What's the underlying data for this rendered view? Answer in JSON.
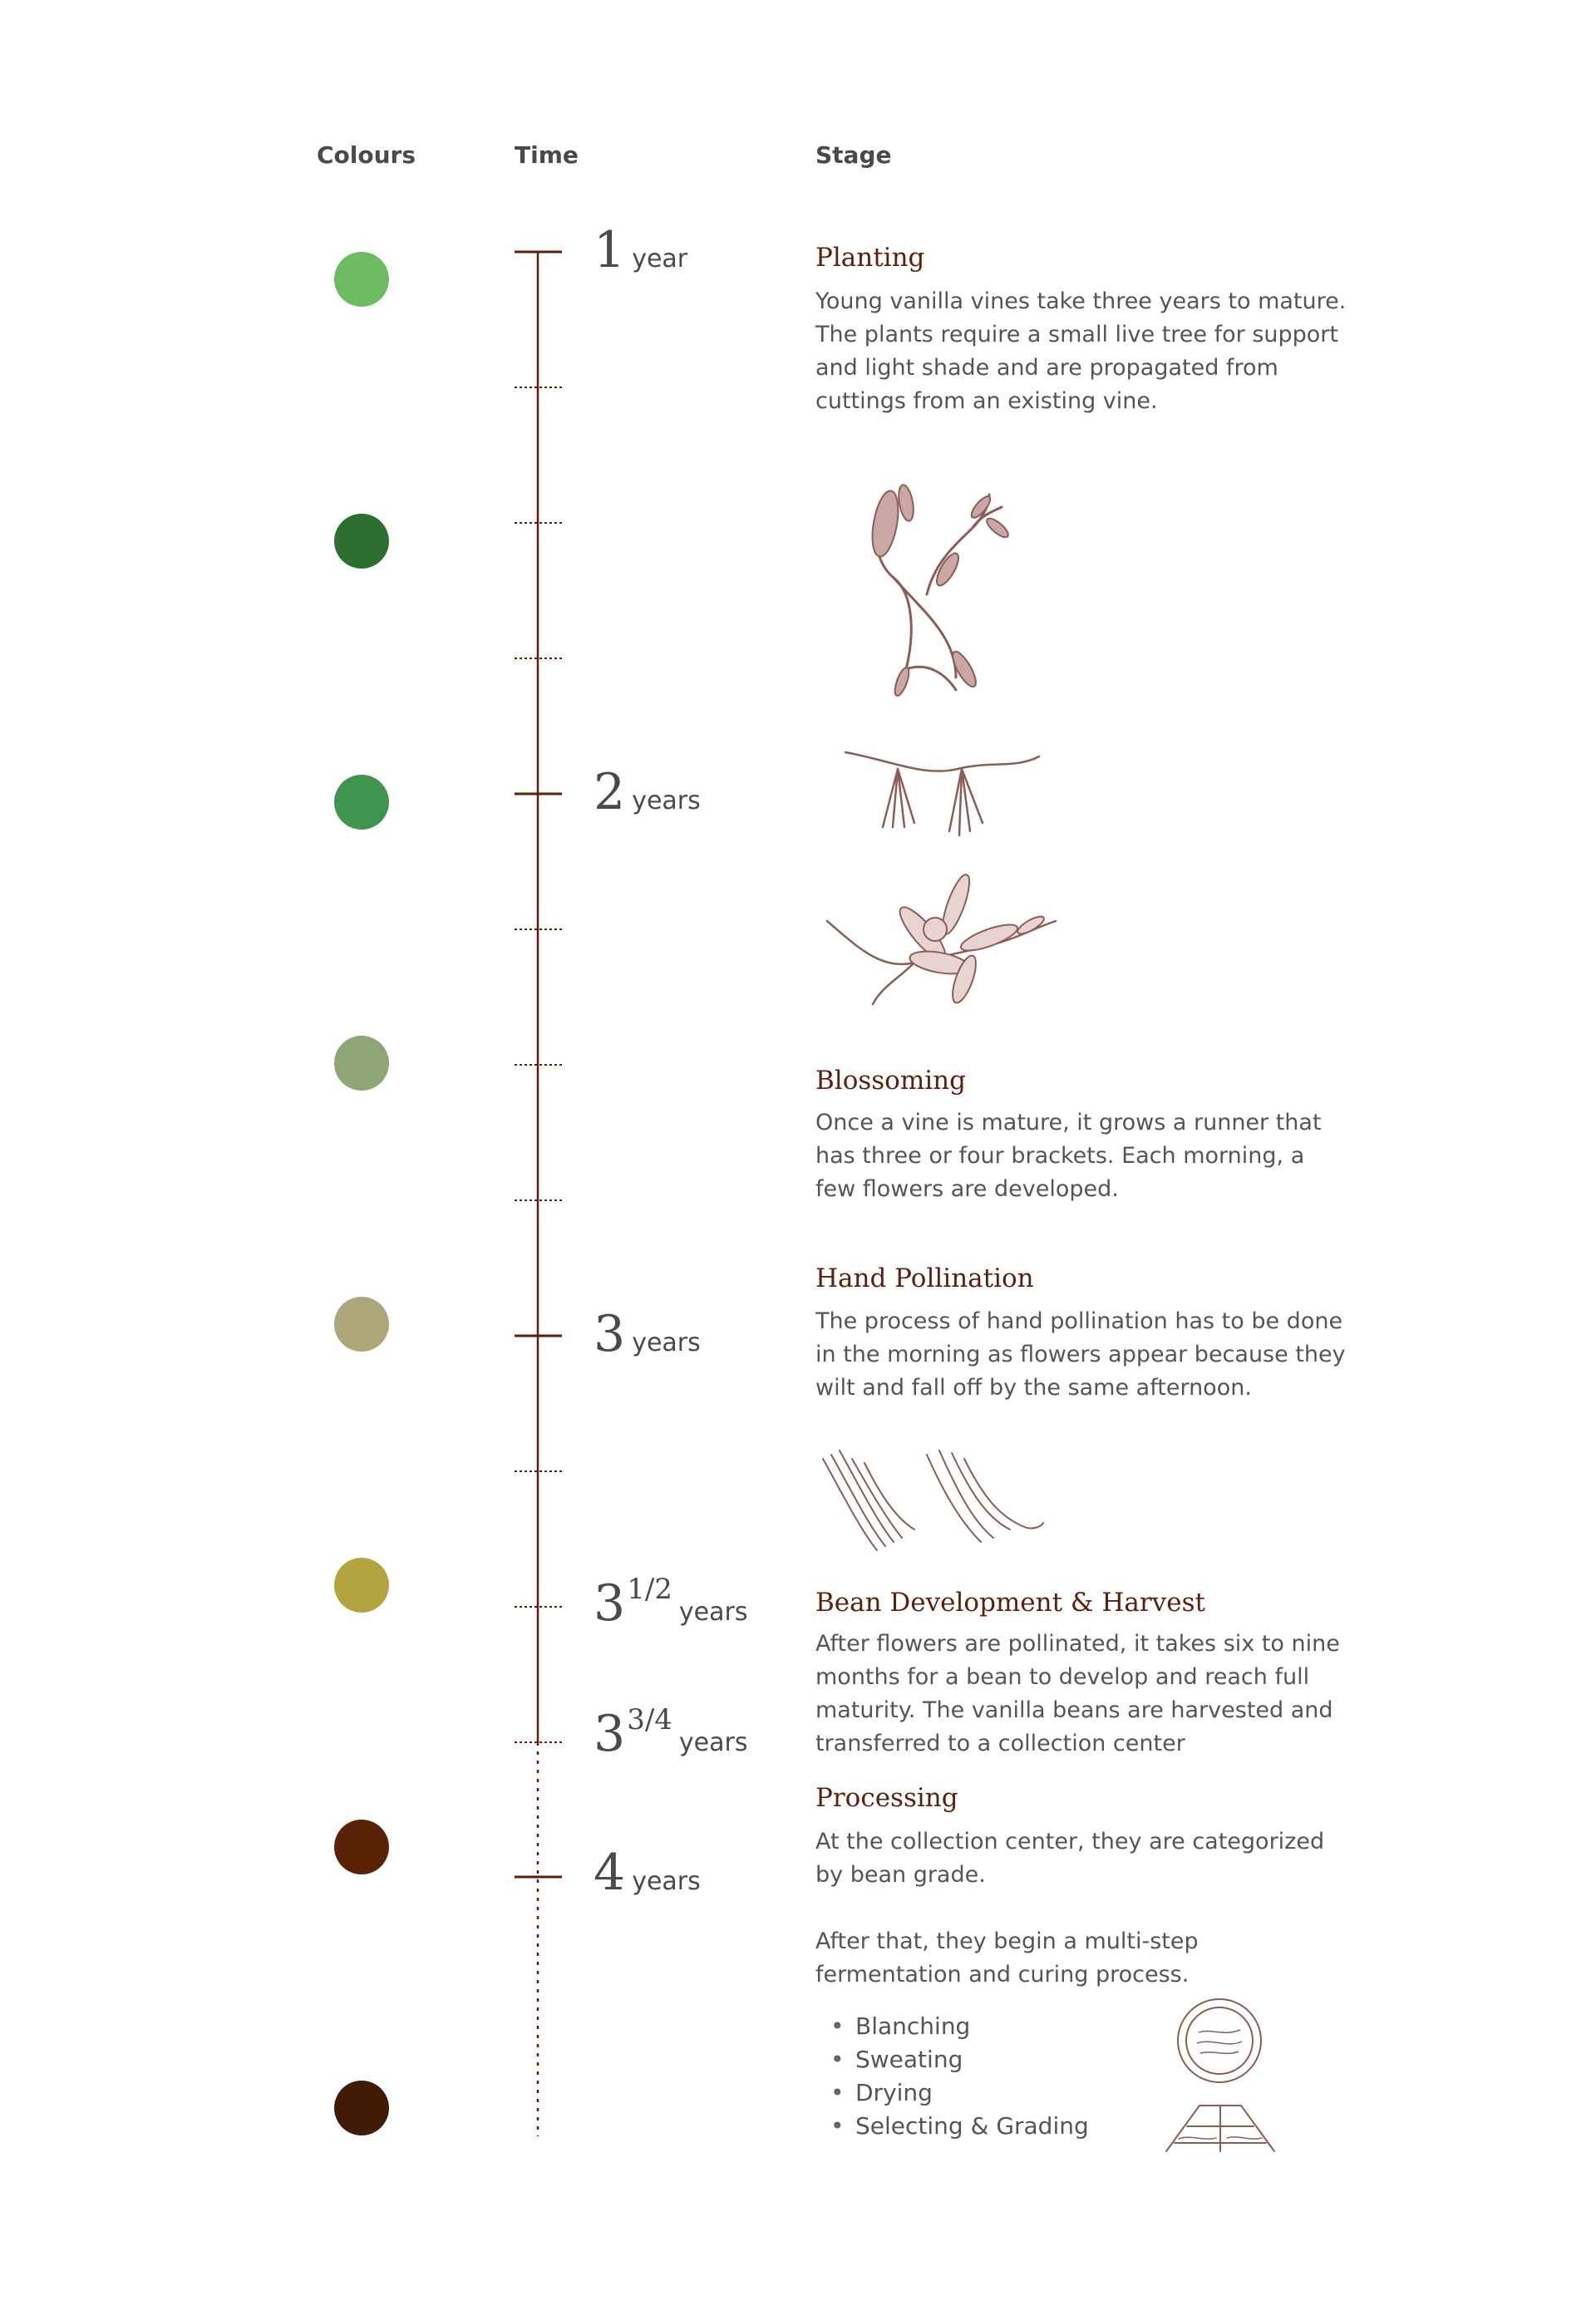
{
  "headers": {
    "colours": "Colours",
    "time": "Time",
    "stage": "Stage"
  },
  "colours": [
    "#6bbd5f",
    "#2e6f31",
    "#3f9550",
    "#8ea676",
    "#aca679",
    "#b3a43f",
    "#5a2306",
    "#421b05"
  ],
  "timeline": {
    "line_color": "#5c1f0c",
    "labels": [
      {
        "num": "1",
        "sup": "",
        "unit": "year"
      },
      {
        "num": "2",
        "sup": "",
        "unit": "years"
      },
      {
        "num": "3",
        "sup": "",
        "unit": "years"
      },
      {
        "num": "3",
        "sup": "1/2",
        "unit": "years"
      },
      {
        "num": "3",
        "sup": "3/4",
        "unit": "years"
      },
      {
        "num": "4",
        "sup": "",
        "unit": "years"
      }
    ]
  },
  "stages": [
    {
      "title": "Planting",
      "desc": "Young vanilla vines take three years to mature. The plants require a small live tree for support and light shade and are propagated from cuttings from an existing vine."
    },
    {
      "title": "Blossoming",
      "desc": "Once a vine is mature, it grows a runner that has three or four brackets. Each morning, a few flowers are developed."
    },
    {
      "title": "Hand Pollination",
      "desc": "The process of hand pollination has to be done in the morning as flowers appear because they wilt and fall off by the same afternoon."
    },
    {
      "title": "Bean Development & Harvest",
      "desc": "After flowers are pollinated, it takes six to nine months for a bean to develop and reach full maturity. The vanilla beans are harvested and transferred to a collection center"
    },
    {
      "title": "Processing",
      "desc": "At the collection center, they are categorized by bean grade.",
      "desc2": "After that, they begin a multi-step fermentation and curing process."
    }
  ],
  "processing_steps": [
    "Blanching",
    "Sweating",
    "Drying",
    "Selecting & Grading"
  ],
  "illustrations": [
    "vanilla-vine-illustration",
    "vanilla-runner-illustration",
    "vanilla-flower-illustration",
    "vanilla-beans-illustration",
    "curing-basket-illustration",
    "drying-rack-illustration"
  ]
}
